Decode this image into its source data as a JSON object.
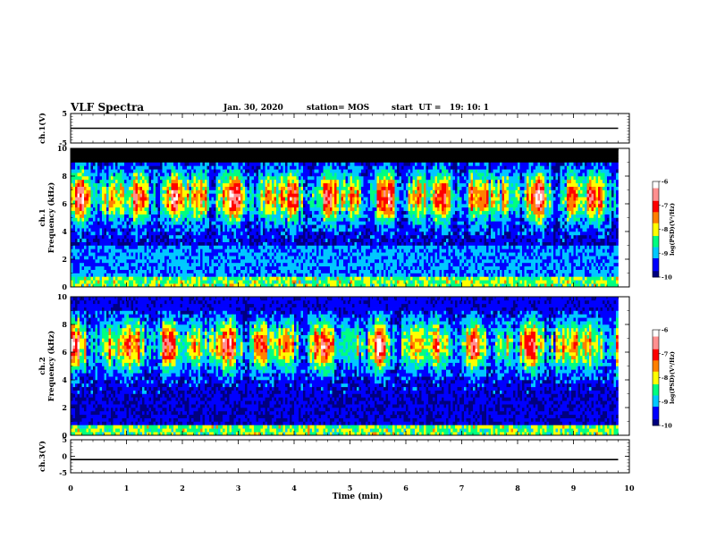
{
  "header": {
    "title": "VLF Spectra",
    "date": "Jan. 30, 2020",
    "station": "station= MOS",
    "start": "start  UT =   19: 10: 1"
  },
  "chart_data": [
    {
      "type": "line",
      "panel": "ch1-waveform",
      "ylabel": "ch.1(V)",
      "ylim": [
        -5,
        5
      ],
      "y_ticks": [
        "5",
        "-5"
      ],
      "series": [
        {
          "x": [
            0,
            9.8
          ],
          "values": [
            0,
            0
          ]
        }
      ],
      "line_color": "#000000"
    },
    {
      "type": "heatmap",
      "panel": "ch1-spectrogram",
      "ylabel_lines": [
        "ch.1",
        "Frequency (kHz)"
      ],
      "ylim": [
        0,
        10
      ],
      "y_ticks": [
        "0",
        "2",
        "4",
        "6",
        "8",
        "10"
      ],
      "x_range_min": [
        0,
        9.8
      ],
      "colorbar": {
        "label": "log(PSD)(V²/Hz)",
        "range": [
          -10,
          -6
        ],
        "ticks": [
          "-6",
          "-7",
          "-8",
          "-9",
          "-10"
        ],
        "colormap": [
          "#000080",
          "#0000ff",
          "#00c8ff",
          "#00ff80",
          "#ffff00",
          "#ff8000",
          "#ff0000",
          "#ff9090",
          "#ffffff"
        ]
      }
    },
    {
      "type": "heatmap",
      "panel": "ch2-spectrogram",
      "ylabel_lines": [
        "ch.2",
        "Frequency (kHz)"
      ],
      "ylim": [
        0,
        10
      ],
      "y_ticks": [
        "0",
        "2",
        "4",
        "6",
        "8",
        "10"
      ],
      "x_range_min": [
        0,
        9.8
      ],
      "colorbar": {
        "label": "log(PSD)(V²/Hz)",
        "range": [
          -10,
          -6
        ],
        "ticks": [
          "-6",
          "-7",
          "-8",
          "-9",
          "-10"
        ],
        "colormap": [
          "#000080",
          "#0000ff",
          "#00c8ff",
          "#00ff80",
          "#ffff00",
          "#ff8000",
          "#ff0000",
          "#ff9090",
          "#ffffff"
        ]
      }
    },
    {
      "type": "line",
      "panel": "ch3-waveform",
      "ylabel": "ch.3(V)",
      "ylim": [
        -5,
        5
      ],
      "y_ticks": [
        "5",
        "0",
        "-5"
      ],
      "series": [
        {
          "x": [
            0,
            9.8
          ],
          "values": [
            -1,
            -1
          ]
        }
      ],
      "line_color": "#000000"
    }
  ],
  "x_axis": {
    "label": "Time (min)",
    "xlim": [
      0,
      10
    ],
    "ticks": [
      "0",
      "1",
      "2",
      "3",
      "4",
      "5",
      "6",
      "7",
      "8",
      "9",
      "10"
    ]
  }
}
